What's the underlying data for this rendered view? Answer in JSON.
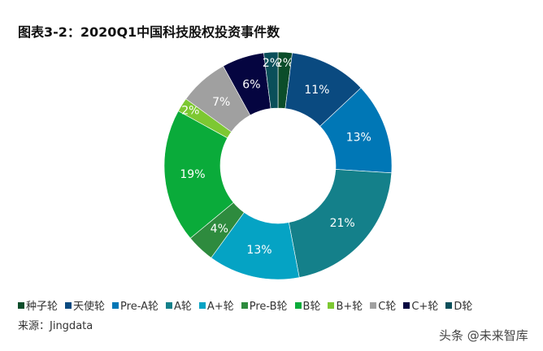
{
  "chart_data": {
    "type": "pie",
    "donut": true,
    "title": "图表3-2：2020Q1中国科技股权投资事件数",
    "categories": [
      "种子轮",
      "天使轮",
      "Pre-A轮",
      "A轮",
      "A+轮",
      "Pre-B轮",
      "B轮",
      "B+轮",
      "C轮",
      "C+轮",
      "D轮"
    ],
    "values": [
      2,
      11,
      13,
      21,
      13,
      4,
      19,
      2,
      7,
      6,
      2
    ],
    "labels": [
      "2%",
      "11%",
      "13%",
      "21%",
      "13%",
      "4%",
      "19%",
      "2%",
      "7%",
      "6%",
      "2%"
    ],
    "colors": [
      "#0b4d2a",
      "#0a4a80",
      "#0077b6",
      "#14808a",
      "#05a3c4",
      "#2e8b3e",
      "#0aab3a",
      "#7dc832",
      "#a0a0a0",
      "#050540",
      "#0a4f5a"
    ],
    "legend_placement": "bottom"
  },
  "source": "来源：Jingdata",
  "watermark": "头条 @未来智库"
}
